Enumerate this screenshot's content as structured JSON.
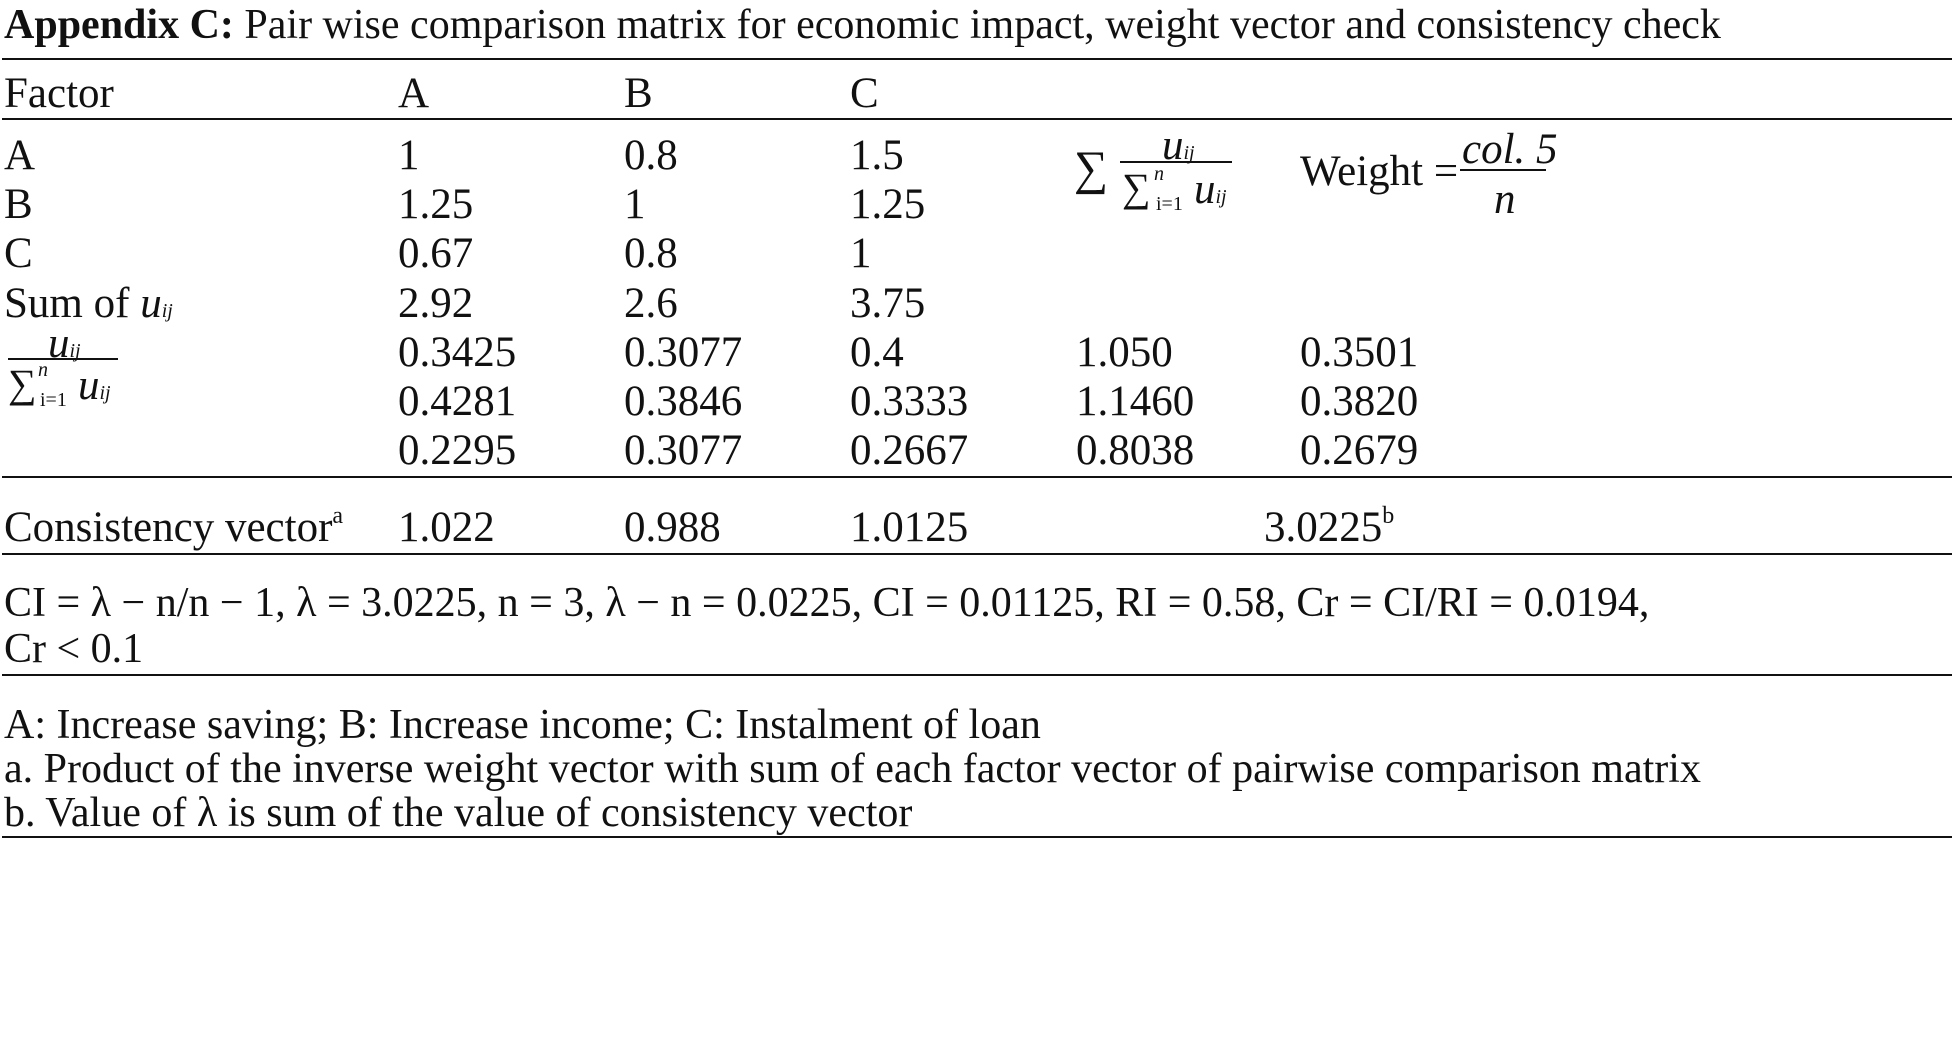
{
  "title": {
    "bold": "Appendix C:",
    "rest": "Pair wise comparison matrix for economic impact, weight vector and consistency check"
  },
  "header": {
    "factor": "Factor",
    "a": "A",
    "b": "B",
    "c": "C"
  },
  "formula_col4": {
    "sigma": "∑",
    "num": "u",
    "num_sub": "ij",
    "den_sigma": "∑",
    "den_top": "n",
    "den_bottom": "i=1",
    "den_u": "u",
    "den_sub": "ij"
  },
  "formula_col5": {
    "label": "Weight =",
    "num": "col. 5",
    "den": "n"
  },
  "matrix_rows": [
    {
      "label": "A",
      "a": "1",
      "b": "0.8",
      "c": "1.5"
    },
    {
      "label": "B",
      "a": "1.25",
      "b": "1",
      "c": "1.25"
    },
    {
      "label": "C",
      "a": "0.67",
      "b": "0.8",
      "c": "1"
    }
  ],
  "sum_row": {
    "label": "Sum of",
    "u": "u",
    "sub": "ij",
    "a": "2.92",
    "b": "2.6",
    "c": "3.75"
  },
  "norm_label": {
    "num": "u",
    "num_sub": "ij",
    "den_sigma": "∑",
    "den_top": "n",
    "den_bottom": "i=1",
    "den_u": "u",
    "den_sub": "ij"
  },
  "norm_rows": [
    {
      "a": "0.3425",
      "b": "0.3077",
      "c": "0.4",
      "sum": "1.050",
      "weight": "0.3501"
    },
    {
      "a": "0.4281",
      "b": "0.3846",
      "c": "0.3333",
      "sum": "1.1460",
      "weight": "0.3820"
    },
    {
      "a": "0.2295",
      "b": "0.3077",
      "c": "0.2667",
      "sum": "0.8038",
      "weight": "0.2679"
    }
  ],
  "consistency": {
    "label": "Consistency vector",
    "label_sup": "a",
    "a": "1.022",
    "b": "0.988",
    "c": "1.0125",
    "total": "3.0225",
    "total_sup": "b"
  },
  "ci_line1": "CI = λ − n/n − 1, λ = 3.0225, n = 3, λ − n = 0.0225, CI = 0.01125, RI = 0.58, Cr = CI/RI = 0.0194,",
  "ci_line2": "Cr < 0.1",
  "notes": [
    "A: Increase saving; B: Increase income; C: Instalment of loan",
    "a. Product of the inverse weight vector with sum of each factor vector of pairwise comparison matrix",
    "b. Value of λ is sum of the value of consistency vector"
  ]
}
